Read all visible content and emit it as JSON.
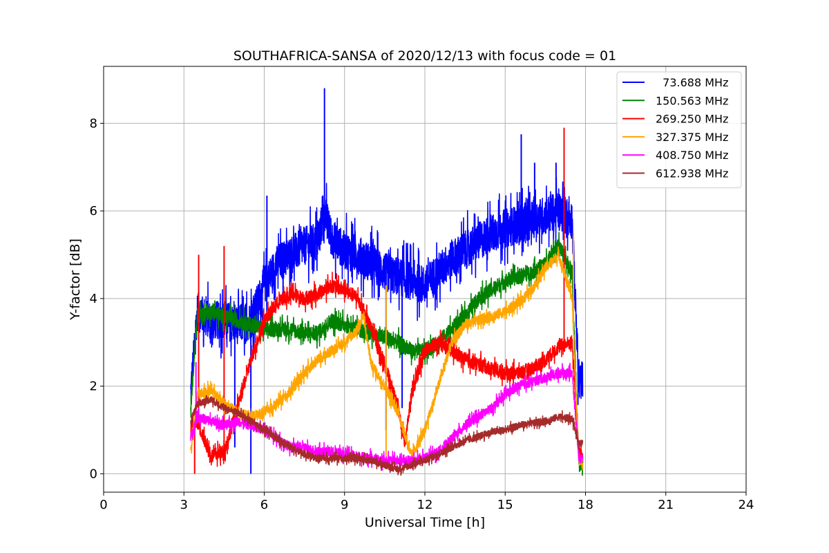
{
  "chart_data": {
    "type": "line",
    "title": "SOUTHAFRICA-SANSA of 2020/12/13 with focus code = 01",
    "xlabel": "Universal Time [h]",
    "ylabel": "Y-factor [dB]",
    "xlim": [
      0,
      24
    ],
    "ylim": [
      -0.42,
      9.3
    ],
    "xticks": [
      0,
      3,
      6,
      9,
      12,
      15,
      18,
      21,
      24
    ],
    "yticks": [
      0,
      2,
      4,
      6,
      8
    ],
    "grid": true,
    "legend_position": "top-right",
    "series": [
      {
        "name": "  73.688 MHz",
        "color": "#0000ff",
        "x": [
          3.25,
          3.5,
          4.0,
          4.5,
          5.0,
          5.5,
          6.0,
          6.5,
          7.0,
          7.5,
          8.0,
          8.25,
          8.5,
          9.0,
          9.5,
          10.0,
          10.5,
          11.0,
          11.5,
          12.0,
          12.5,
          13.0,
          13.5,
          14.0,
          14.5,
          15.0,
          15.5,
          16.0,
          16.5,
          17.0,
          17.5,
          17.75,
          17.9
        ],
        "y": [
          1.8,
          3.7,
          3.5,
          3.5,
          3.4,
          3.5,
          4.3,
          4.8,
          5.0,
          5.2,
          5.3,
          6.0,
          5.4,
          5.1,
          5.0,
          4.8,
          4.6,
          4.5,
          4.4,
          4.3,
          4.6,
          4.9,
          5.1,
          5.3,
          5.5,
          5.6,
          5.7,
          5.8,
          5.9,
          6.0,
          5.8,
          2.0,
          2.2
        ],
        "spikes": [
          {
            "x": 8.25,
            "y": 8.8
          },
          {
            "x": 15.6,
            "y": 7.75
          },
          {
            "x": 16.1,
            "y": 7.1
          },
          {
            "x": 16.9,
            "y": 7.1
          },
          {
            "x": 6.1,
            "y": 6.35
          },
          {
            "x": 5.5,
            "y": 0.0
          },
          {
            "x": 4.9,
            "y": 0.6
          },
          {
            "x": 10.55,
            "y": 1.0
          },
          {
            "x": 11.15,
            "y": 1.5
          }
        ]
      },
      {
        "name": "150.563 MHz",
        "color": "#008000",
        "x": [
          3.25,
          3.5,
          4.0,
          4.5,
          5.0,
          5.5,
          6.0,
          6.5,
          7.0,
          7.5,
          8.0,
          8.5,
          9.0,
          9.5,
          10.0,
          10.5,
          11.0,
          11.5,
          12.0,
          12.5,
          13.0,
          13.5,
          14.0,
          14.5,
          15.0,
          15.5,
          16.0,
          16.5,
          17.0,
          17.5,
          17.75,
          17.9
        ],
        "y": [
          1.5,
          3.6,
          3.7,
          3.6,
          3.5,
          3.4,
          3.3,
          3.3,
          3.3,
          3.2,
          3.2,
          3.5,
          3.4,
          3.3,
          3.2,
          3.1,
          3.0,
          2.8,
          2.8,
          3.0,
          3.3,
          3.6,
          4.0,
          4.2,
          4.4,
          4.5,
          4.6,
          4.8,
          5.2,
          4.6,
          0.3,
          0.1
        ]
      },
      {
        "name": "269.250 MHz",
        "color": "#ff0000",
        "x": [
          3.25,
          3.5,
          4.0,
          4.5,
          5.0,
          5.5,
          6.0,
          6.5,
          7.0,
          7.5,
          8.0,
          8.5,
          9.0,
          9.5,
          10.0,
          10.5,
          11.0,
          11.25,
          11.5,
          12.0,
          12.5,
          13.0,
          13.5,
          14.0,
          14.5,
          15.0,
          15.5,
          16.0,
          16.5,
          17.0,
          17.5,
          17.75,
          17.9
        ],
        "y": [
          1.0,
          1.2,
          0.4,
          0.5,
          1.5,
          2.6,
          3.5,
          3.9,
          4.1,
          4.0,
          4.1,
          4.3,
          4.2,
          4.0,
          3.3,
          2.5,
          1.5,
          0.7,
          1.8,
          2.8,
          3.0,
          2.8,
          2.6,
          2.5,
          2.4,
          2.3,
          2.3,
          2.4,
          2.6,
          2.9,
          3.0,
          0.5,
          0.4
        ],
        "spikes": [
          {
            "x": 3.55,
            "y": 5.0
          },
          {
            "x": 4.5,
            "y": 5.2
          },
          {
            "x": 17.2,
            "y": 7.9
          },
          {
            "x": 3.4,
            "y": 0.0
          }
        ]
      },
      {
        "name": "327.375 MHz",
        "color": "#ffa500",
        "x": [
          3.25,
          3.5,
          4.0,
          4.5,
          5.0,
          5.5,
          6.0,
          6.5,
          7.0,
          7.5,
          8.0,
          8.5,
          9.0,
          9.5,
          9.7,
          10.0,
          10.5,
          11.0,
          11.5,
          12.0,
          12.5,
          13.0,
          13.5,
          14.0,
          14.5,
          15.0,
          15.5,
          16.0,
          16.5,
          17.0,
          17.5,
          17.75,
          17.9
        ],
        "y": [
          0.5,
          1.8,
          1.9,
          1.6,
          1.4,
          1.3,
          1.4,
          1.6,
          1.9,
          2.3,
          2.6,
          2.8,
          3.0,
          3.3,
          3.6,
          2.5,
          2.0,
          1.4,
          0.4,
          1.0,
          2.0,
          3.0,
          3.4,
          3.5,
          3.6,
          3.7,
          3.9,
          4.2,
          4.7,
          5.0,
          4.0,
          0.3,
          0.2
        ],
        "spikes": [
          {
            "x": 10.55,
            "y": 4.3
          },
          {
            "x": 17.55,
            "y": 5.5
          },
          {
            "x": 10.55,
            "y": 0.4
          }
        ]
      },
      {
        "name": "408.750 MHz",
        "color": "#ff00ff",
        "x": [
          3.25,
          3.5,
          4.0,
          4.5,
          5.0,
          5.5,
          6.0,
          6.5,
          7.0,
          7.5,
          8.0,
          8.5,
          9.0,
          9.5,
          10.0,
          10.5,
          11.0,
          11.5,
          12.0,
          12.5,
          13.0,
          13.5,
          14.0,
          14.5,
          15.0,
          15.5,
          16.0,
          16.5,
          17.0,
          17.5,
          17.75,
          17.9
        ],
        "y": [
          0.8,
          1.3,
          1.2,
          1.1,
          1.2,
          1.1,
          1.0,
          0.8,
          0.6,
          0.6,
          0.5,
          0.5,
          0.45,
          0.4,
          0.35,
          0.3,
          0.3,
          0.3,
          0.35,
          0.5,
          0.8,
          1.1,
          1.3,
          1.5,
          1.8,
          2.0,
          2.1,
          2.2,
          2.3,
          2.3,
          0.4,
          0.3
        ],
        "spikes": [
          {
            "x": 3.45,
            "y": 2.55
          }
        ]
      },
      {
        "name": "612.938 MHz",
        "color": "#a52a2a",
        "x": [
          3.25,
          3.5,
          4.0,
          4.5,
          5.0,
          5.5,
          6.0,
          6.5,
          7.0,
          7.5,
          8.0,
          8.5,
          9.0,
          9.5,
          10.0,
          10.5,
          11.0,
          11.5,
          12.0,
          12.5,
          13.0,
          13.5,
          14.0,
          14.5,
          15.0,
          15.5,
          16.0,
          16.5,
          17.0,
          17.5,
          17.75,
          17.9
        ],
        "y": [
          1.2,
          1.6,
          1.7,
          1.5,
          1.4,
          1.2,
          1.0,
          0.8,
          0.6,
          0.45,
          0.35,
          0.35,
          0.35,
          0.35,
          0.3,
          0.2,
          0.1,
          0.2,
          0.3,
          0.45,
          0.6,
          0.75,
          0.85,
          0.95,
          1.0,
          1.1,
          1.15,
          1.2,
          1.3,
          1.25,
          0.7,
          0.7
        ]
      }
    ]
  }
}
